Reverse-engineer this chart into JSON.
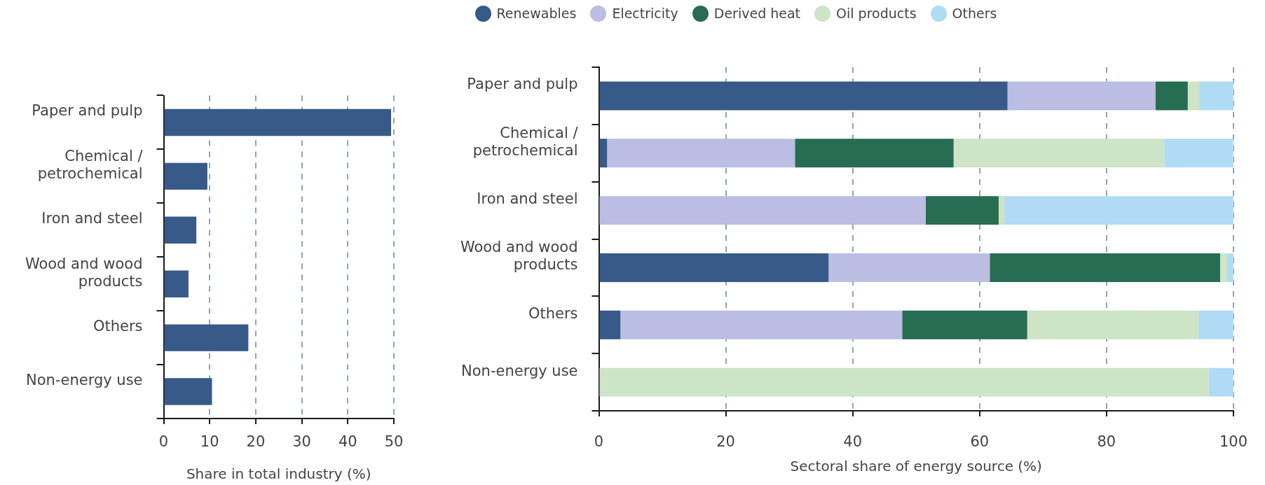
{
  "chart_data": [
    {
      "type": "bar",
      "orientation": "horizontal",
      "categories": [
        "Paper and pulp",
        "Chemical / petrochemical",
        "Iron and steel",
        "Wood and wood products",
        "Others",
        "Non-energy use"
      ],
      "values": [
        49.4,
        9.5,
        7.1,
        5.4,
        18.4,
        10.5
      ],
      "color": "#385a88",
      "xlim": [
        0,
        50
      ],
      "xticks": [
        0,
        10,
        20,
        30,
        40,
        50
      ],
      "xlabel": "Share in total industry (%)",
      "grid": "x"
    },
    {
      "type": "bar",
      "orientation": "horizontal",
      "stacked": true,
      "categories": [
        "Paper and pulp",
        "Chemical / petrochemical",
        "Iron and steel",
        "Wood and wood products",
        "Others",
        "Non-energy use"
      ],
      "series": [
        {
          "name": "Renewables",
          "color": "#385a88",
          "values": [
            64.4,
            1.3,
            null,
            36.2,
            3.4,
            null
          ]
        },
        {
          "name": "Electricity",
          "color": "#bbbde2",
          "values": [
            23.3,
            29.6,
            51.5,
            25.4,
            44.4,
            null
          ]
        },
        {
          "name": "Derived heat",
          "color": "#266d52",
          "values": [
            5.1,
            25.0,
            11.5,
            36.3,
            19.7,
            null
          ]
        },
        {
          "name": "Oil products",
          "color": "#cde4c6",
          "values": [
            1.8,
            33.2,
            0.9,
            1.1,
            27.0,
            96.1
          ]
        },
        {
          "name": "Others",
          "color": "#b0dbf4",
          "values": [
            5.4,
            10.9,
            36.1,
            1.0,
            5.5,
            3.9
          ]
        }
      ],
      "xlim": [
        0,
        100
      ],
      "xticks": [
        0,
        20,
        40,
        60,
        80,
        100
      ],
      "xlabel": "Sectoral share of energy source (%)",
      "grid": "x",
      "legend": "top"
    }
  ]
}
